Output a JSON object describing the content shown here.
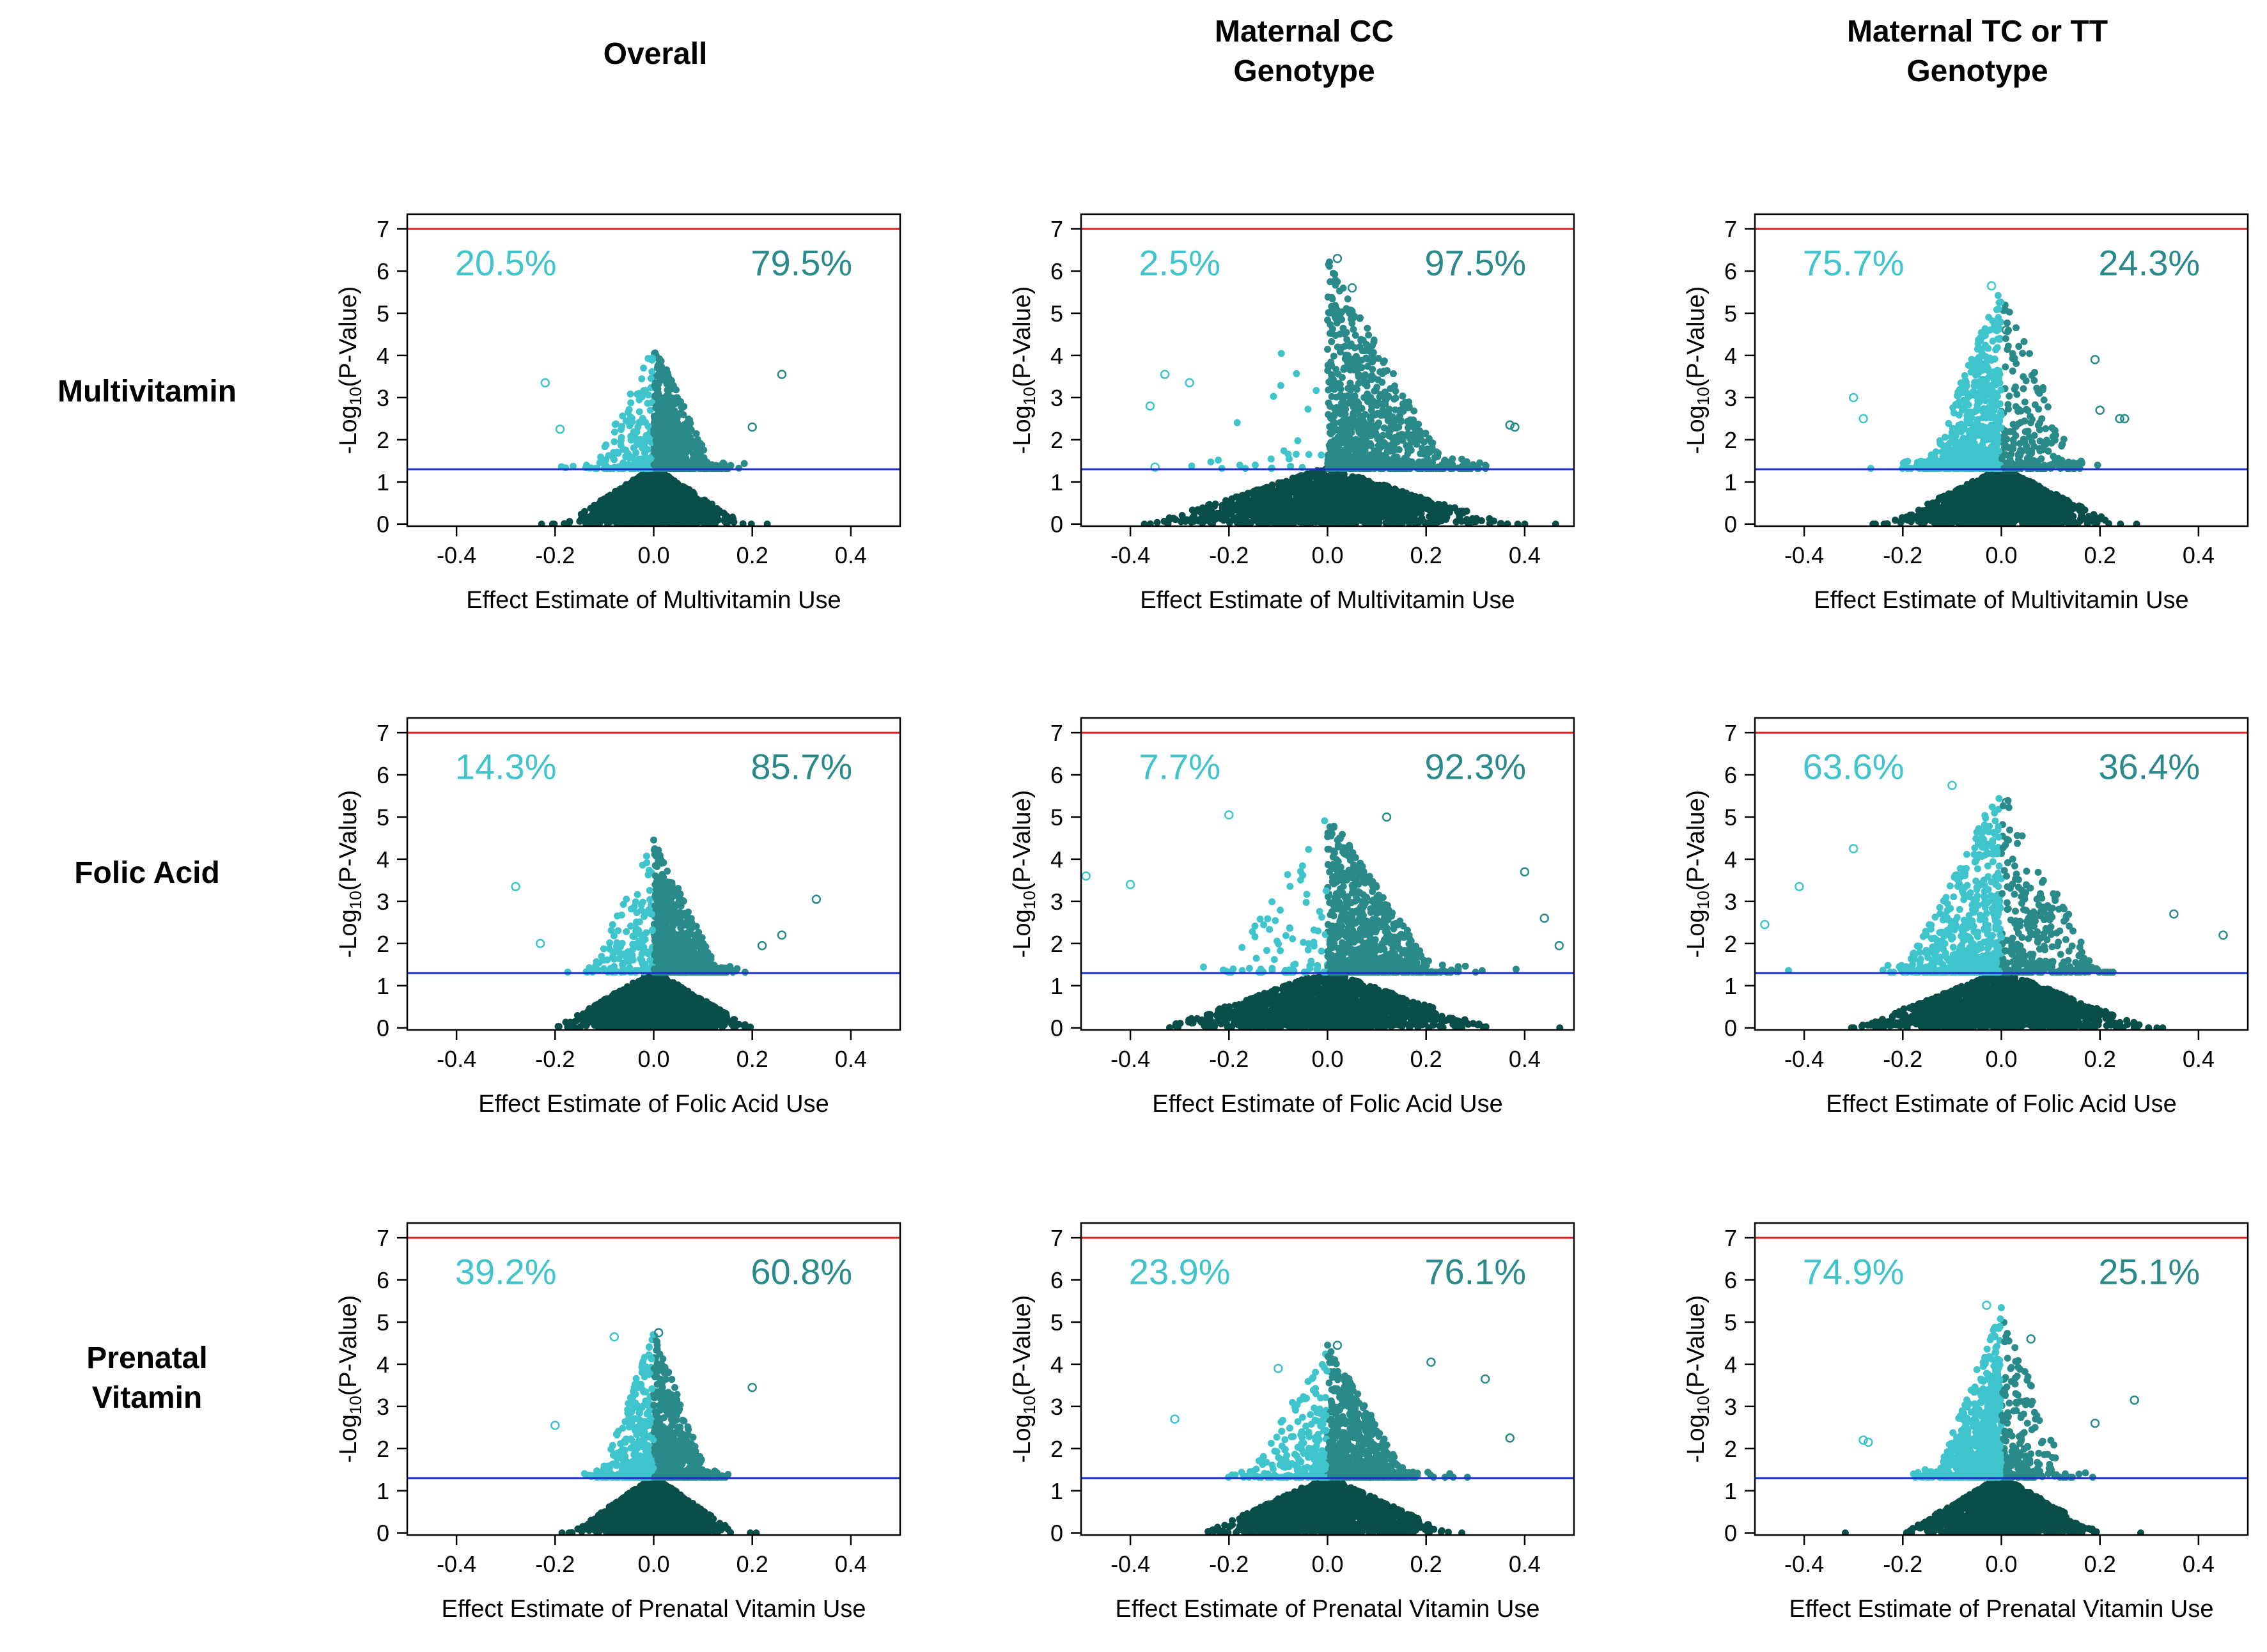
{
  "column_headers": [
    [
      "Overall"
    ],
    [
      "Maternal CC",
      "Genotype"
    ],
    [
      "Maternal TC or TT",
      "Genotype"
    ]
  ],
  "row_headers": [
    [
      "Multivitamin"
    ],
    [
      "Folic Acid"
    ],
    [
      "Prenatal",
      "Vitamin"
    ]
  ],
  "y_axis_label": {
    "prefix": "-Log",
    "subscript": "10",
    "suffix": "(P-Value)"
  },
  "x_axis_labels": [
    "Effect Estimate of Multivitamin Use",
    "Effect Estimate of Folic Acid Use",
    "Effect Estimate of Prenatal Vitamin Use"
  ],
  "x_ticks": [
    "-0.4",
    "-0.2",
    "0.0",
    "0.2",
    "0.4"
  ],
  "y_ticks": [
    "0",
    "1",
    "2",
    "3",
    "4",
    "5",
    "6",
    "7"
  ],
  "colors": {
    "negative_significant": "#3fc4cc",
    "positive_significant": "#2a8a8a",
    "non_significant": "#0a4e4a",
    "genome_wide_line": "#e02020",
    "nominal_line": "#1a2ccc",
    "negative_percent_text": "#3fc4cc",
    "positive_percent_text": "#2a8a8a"
  },
  "chart_data": [
    {
      "type": "scatter",
      "title": "Overall",
      "row": "Multivitamin",
      "xlabel": "Effect Estimate of Multivitamin Use",
      "ylabel": "-Log10(P-Value)",
      "xlim": [
        -0.5,
        0.5
      ],
      "ylim": [
        0,
        7
      ],
      "reference_lines": [
        {
          "y": 7.0,
          "color": "red"
        },
        {
          "y": 1.3,
          "color": "blue"
        }
      ],
      "negative_percent": "20.5%",
      "positive_percent": "79.5%",
      "spread": 0.11,
      "max_y": 4.3,
      "outliers": [
        [
          0.26,
          3.55
        ],
        [
          -0.22,
          3.35
        ],
        [
          0.2,
          2.3
        ],
        [
          -0.19,
          2.25
        ]
      ]
    },
    {
      "type": "scatter",
      "title": "Maternal CC Genotype",
      "row": "Multivitamin",
      "xlabel": "Effect Estimate of Multivitamin Use",
      "ylabel": "-Log10(P-Value)",
      "xlim": [
        -0.5,
        0.5
      ],
      "ylim": [
        0,
        7
      ],
      "reference_lines": [
        {
          "y": 7.0,
          "color": "red"
        },
        {
          "y": 1.3,
          "color": "blue"
        }
      ],
      "negative_percent": "2.5%",
      "positive_percent": "97.5%",
      "spread": 0.22,
      "max_y": 6.3,
      "outliers": [
        [
          0.02,
          6.3
        ],
        [
          0.05,
          5.6
        ],
        [
          -0.33,
          3.55
        ],
        [
          -0.28,
          3.35
        ],
        [
          0.37,
          2.35
        ],
        [
          -0.36,
          2.8
        ],
        [
          0.38,
          2.3
        ],
        [
          -0.35,
          1.35
        ]
      ]
    },
    {
      "type": "scatter",
      "title": "Maternal TC or TT Genotype",
      "row": "Multivitamin",
      "xlabel": "Effect Estimate of Multivitamin Use",
      "ylabel": "-Log10(P-Value)",
      "xlim": [
        -0.5,
        0.5
      ],
      "ylim": [
        0,
        7
      ],
      "reference_lines": [
        {
          "y": 7.0,
          "color": "red"
        },
        {
          "y": 1.3,
          "color": "blue"
        }
      ],
      "negative_percent": "75.7%",
      "positive_percent": "24.3%",
      "spread": 0.14,
      "max_y": 5.7,
      "outliers": [
        [
          -0.02,
          5.65
        ],
        [
          0.01,
          4.6
        ],
        [
          -0.3,
          3.0
        ],
        [
          0.19,
          3.9
        ],
        [
          0.24,
          2.5
        ],
        [
          0.25,
          2.5
        ],
        [
          -0.28,
          2.5
        ],
        [
          0.2,
          2.7
        ]
      ]
    },
    {
      "type": "scatter",
      "title": "Overall",
      "row": "Folic Acid",
      "xlabel": "Effect Estimate of Folic Acid Use",
      "ylabel": "-Log10(P-Value)",
      "xlim": [
        -0.5,
        0.5
      ],
      "ylim": [
        0,
        7
      ],
      "reference_lines": [
        {
          "y": 7.0,
          "color": "red"
        },
        {
          "y": 1.3,
          "color": "blue"
        }
      ],
      "negative_percent": "14.3%",
      "positive_percent": "85.7%",
      "spread": 0.12,
      "max_y": 4.5,
      "outliers": [
        [
          0.33,
          3.05
        ],
        [
          -0.28,
          3.35
        ],
        [
          0.26,
          2.2
        ],
        [
          0.22,
          1.95
        ],
        [
          -0.23,
          2.0
        ]
      ]
    },
    {
      "type": "scatter",
      "title": "Maternal CC Genotype",
      "row": "Folic Acid",
      "xlabel": "Effect Estimate of Folic Acid Use",
      "ylabel": "-Log10(P-Value)",
      "xlim": [
        -0.5,
        0.5
      ],
      "ylim": [
        0,
        7
      ],
      "reference_lines": [
        {
          "y": 7.0,
          "color": "red"
        },
        {
          "y": 1.3,
          "color": "blue"
        }
      ],
      "negative_percent": "7.7%",
      "positive_percent": "92.3%",
      "spread": 0.2,
      "max_y": 5.1,
      "outliers": [
        [
          -0.49,
          3.6
        ],
        [
          -0.4,
          3.4
        ],
        [
          0.44,
          2.6
        ],
        [
          0.47,
          1.95
        ],
        [
          -0.2,
          5.05
        ],
        [
          0.12,
          5.0
        ],
        [
          0.4,
          3.7
        ]
      ]
    },
    {
      "type": "scatter",
      "title": "Maternal TC or TT Genotype",
      "row": "Folic Acid",
      "xlabel": "Effect Estimate of Folic Acid Use",
      "ylabel": "-Log10(P-Value)",
      "xlim": [
        -0.5,
        0.5
      ],
      "ylim": [
        0,
        7
      ],
      "reference_lines": [
        {
          "y": 7.0,
          "color": "red"
        },
        {
          "y": 1.3,
          "color": "blue"
        }
      ],
      "negative_percent": "63.6%",
      "positive_percent": "36.4%",
      "spread": 0.18,
      "max_y": 5.8,
      "outliers": [
        [
          -0.48,
          2.45
        ],
        [
          -0.41,
          3.35
        ],
        [
          0.45,
          2.2
        ],
        [
          0.35,
          2.7
        ],
        [
          -0.3,
          4.25
        ],
        [
          0.01,
          5.35
        ],
        [
          -0.1,
          5.75
        ]
      ]
    },
    {
      "type": "scatter",
      "title": "Overall",
      "row": "Prenatal Vitamin",
      "xlabel": "Effect Estimate of Prenatal Vitamin Use",
      "ylabel": "-Log10(P-Value)",
      "xlim": [
        -0.5,
        0.5
      ],
      "ylim": [
        0,
        7
      ],
      "reference_lines": [
        {
          "y": 7.0,
          "color": "red"
        },
        {
          "y": 1.3,
          "color": "blue"
        }
      ],
      "negative_percent": "39.2%",
      "positive_percent": "60.8%",
      "spread": 0.1,
      "max_y": 4.8,
      "outliers": [
        [
          0.2,
          3.45
        ],
        [
          -0.2,
          2.55
        ],
        [
          0.01,
          4.75
        ],
        [
          -0.08,
          4.65
        ]
      ]
    },
    {
      "type": "scatter",
      "title": "Maternal CC Genotype",
      "row": "Prenatal Vitamin",
      "xlabel": "Effect Estimate of Prenatal Vitamin Use",
      "ylabel": "-Log10(P-Value)",
      "xlim": [
        -0.5,
        0.5
      ],
      "ylim": [
        0,
        7
      ],
      "reference_lines": [
        {
          "y": 7.0,
          "color": "red"
        },
        {
          "y": 1.3,
          "color": "blue"
        }
      ],
      "negative_percent": "23.9%",
      "positive_percent": "76.1%",
      "spread": 0.15,
      "max_y": 4.5,
      "outliers": [
        [
          0.32,
          3.65
        ],
        [
          -0.31,
          2.7
        ],
        [
          0.37,
          2.25
        ],
        [
          0.02,
          4.45
        ],
        [
          -0.1,
          3.9
        ],
        [
          0.21,
          4.05
        ]
      ]
    },
    {
      "type": "scatter",
      "title": "Maternal TC or TT Genotype",
      "row": "Prenatal Vitamin",
      "xlabel": "Effect Estimate of Prenatal Vitamin Use",
      "ylabel": "-Log10(P-Value)",
      "xlim": [
        -0.5,
        0.5
      ],
      "ylim": [
        0,
        7
      ],
      "reference_lines": [
        {
          "y": 7.0,
          "color": "red"
        },
        {
          "y": 1.3,
          "color": "blue"
        }
      ],
      "negative_percent": "74.9%",
      "positive_percent": "25.1%",
      "spread": 0.12,
      "max_y": 5.4,
      "outliers": [
        [
          -0.03,
          5.4
        ],
        [
          0.27,
          3.15
        ],
        [
          -0.28,
          2.2
        ],
        [
          -0.27,
          2.15
        ],
        [
          0.06,
          4.6
        ],
        [
          0.19,
          2.6
        ]
      ]
    }
  ]
}
